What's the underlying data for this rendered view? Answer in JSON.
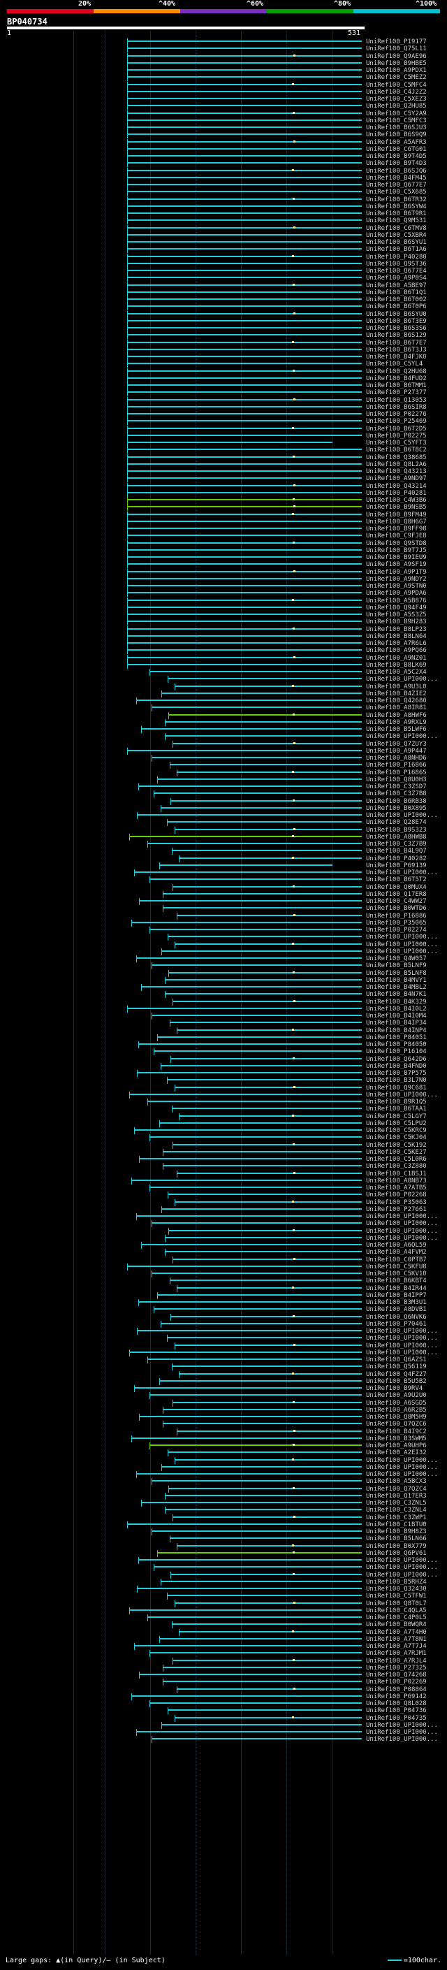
{
  "scale": {
    "colors": [
      "#e3001b",
      "#ff8c00",
      "#7b2fbe",
      "#00a000",
      "#00c0d0"
    ],
    "labels": [
      "20%",
      "^40%",
      "^60%",
      "^80%",
      "^100%"
    ]
  },
  "query": {
    "id": "BP040734",
    "start": "1",
    "end": "531"
  },
  "colors": {
    "normal": "#1bcfdd",
    "highlight": "#5fd000",
    "tick": "#ffffff"
  },
  "hits": [
    "UniRef100_P19177",
    "UniRef100_Q75L11",
    "UniRef100_Q9AE96",
    "UniRef100_B9HBE5",
    "UniRef100_A9PDX1",
    "UniRef100_C5MEZ2",
    "UniRef100_C5MFC4",
    "UniRef100_C4J2Z2",
    "UniRef100_C5XEZ3",
    "UniRef100_Q2HU85",
    "UniRef100_C5Y2A9",
    "UniRef100_C5MFC3",
    "UniRef100_B6SJU3",
    "UniRef100_B6S9Q9",
    "UniRef100_A5AFR3",
    "UniRef100_C6TG01",
    "UniRef100_B9T4D5",
    "UniRef100_B9T4D3",
    "UniRef100_B6SJQ6",
    "UniRef100_B4FM45",
    "UniRef100_Q677E7",
    "UniRef100_C5X685",
    "UniRef100_B6TR32",
    "UniRef100_B6SYW4",
    "UniRef100_B6T9R1",
    "UniRef100_Q9M531",
    "UniRef100_C6TMV8",
    "UniRef100_C5XBR4",
    "UniRef100_B6SYU1",
    "UniRef100_B6T1A6",
    "UniRef100_P40280",
    "UniRef100_Q9ST36",
    "UniRef100_Q677E4",
    "UniRef100_A9P8S4",
    "UniRef100_A5BE97",
    "UniRef100_B6T1Q1",
    "UniRef100_B6T002",
    "UniRef100_B6T0P6",
    "UniRef100_B6SYU0",
    "UniRef100_B6T3E9",
    "UniRef100_B6S3S6",
    "UniRef100_B6S129",
    "UniRef100_B6T7E7",
    "UniRef100_B6T3J3",
    "UniRef100_B4FJK0",
    "UniRef100_C5YL4",
    "UniRef100_Q2HU68",
    "UniRef100_B4FUD2",
    "UniRef100_B6TMM1",
    "UniRef100_P27377",
    "UniRef100_Q13053",
    "UniRef100_B6SIR8",
    "UniRef100_P02276",
    "UniRef100_P25469",
    "UniRef100_B6T2D5",
    "UniRef100_P02275",
    "UniRef100_C5YFT3",
    "UniRef100_B6T8C2",
    "UniRef100_Q38685",
    "UniRef100_Q8L2A6",
    "UniRef100_Q43213",
    "UniRef100_A9ND97",
    "UniRef100_Q43214",
    "UniRef100_P40281",
    "UniRef100_C4W3B6",
    "UniRef100_B9NSB5",
    "UniRef100_B9FM49",
    "UniRef100_Q8H6G7",
    "UniRef100_B9FF98",
    "UniRef100_C9FJE8",
    "UniRef100_Q9STD8",
    "UniRef100_B9T7J5",
    "UniRef100_B9IEU9",
    "UniRef100_A9SF19",
    "UniRef100_A9P1T9",
    "UniRef100_A9NDY2",
    "UniRef100_A9STN0",
    "UniRef100_A9PDA6",
    "UniRef100_A5B876",
    "UniRef100_Q94F49",
    "UniRef100_A5S3Z5",
    "UniRef100_B9H283",
    "UniRef100_B8LP23",
    "UniRef100_B8LN64",
    "UniRef100_A7R6L6",
    "UniRef100_A9PQ66",
    "UniRef100_A9NZ01",
    "UniRef100_B8LK69",
    "UniRef100_A5C2X4",
    "UniRef100_UPI000...",
    "UniRef100_A9U3L0",
    "UniRef100_B4ZIE2",
    "UniRef100_Q42680",
    "UniRef100_A8IR81",
    "UniRef100_A8HWF6",
    "UniRef100_A9RXL9",
    "UniRef100_B5LWF6",
    "UniRef100_UPI000...",
    "UniRef100_Q7ZUY3",
    "UniRef100_A9P447",
    "UniRef100_A8NHD6",
    "UniRef100_P16866",
    "UniRef100_P16865",
    "UniRef100_Q8U0H3",
    "UniRef100_C3ZSD7",
    "UniRef100_C3Z7B8",
    "UniRef100_B6RB38",
    "UniRef100_B0X895",
    "UniRef100_UPI000...",
    "UniRef100_Q28E74",
    "UniRef100_B9S323",
    "UniRef100_A8HWB8",
    "UniRef100_C3Z7B9",
    "UniRef100_B4L9Q7",
    "UniRef100_P40282",
    "UniRef100_P69139",
    "UniRef100_UPI000...",
    "UniRef100_B6T5T2",
    "UniRef100_Q0MUX4",
    "UniRef100_Q17ER8",
    "UniRef100_C4WW27",
    "UniRef100_B0WTD6",
    "UniRef100_P16886",
    "UniRef100_P35065",
    "UniRef100_P02274",
    "UniRef100_UPI000...",
    "UniRef100_UPI000...",
    "UniRef100_UPI000...",
    "UniRef100_Q4W057",
    "UniRef100_B5LNF9",
    "UniRef100_B5LNF8",
    "UniRef100_B4MVY1",
    "UniRef100_B4MBL2",
    "UniRef100_B4N7K1",
    "UniRef100_B4K329",
    "UniRef100_B4I0L2",
    "UniRef100_B4I0M4",
    "UniRef100_B4IP34",
    "UniRef100_B4INP4",
    "UniRef100_P84051",
    "UniRef100_P84050",
    "UniRef100_P16104",
    "UniRef100_Q642D6",
    "UniRef100_B4FND0",
    "UniRef100_B7P575",
    "UniRef100_B3L7N0",
    "UniRef100_Q9C681",
    "UniRef100_UPI000...",
    "UniRef100_B9R1Q5",
    "UniRef100_B6TAA1",
    "UniRef100_C5LGY7",
    "UniRef100_C5LPU2",
    "UniRef100_C5KRC9",
    "UniRef100_C5KJ04",
    "UniRef100_C5K192",
    "UniRef100_C5KE27",
    "UniRef100_C5L0R6",
    "UniRef100_C3Z880",
    "UniRef100_C1BSJ1",
    "UniRef100_A8NB73",
    "UniRef100_A7ATB5",
    "UniRef100_P02268",
    "UniRef100_P35063",
    "UniRef100_P27661",
    "UniRef100_UPI000...",
    "UniRef100_UPI000...",
    "UniRef100_UPI000...",
    "UniRef100_UPI000...",
    "UniRef100_A6QL59",
    "UniRef100_A4FVM2",
    "UniRef100_C0PTB7",
    "UniRef100_C5KFU8",
    "UniRef100_C5KV10",
    "UniRef100_B6KBT4",
    "UniRef100_B4IR44",
    "UniRef100_B4IPP7",
    "UniRef100_B3M3U1",
    "UniRef100_A8DVB1",
    "UniRef100_Q6NVK6",
    "UniRef100_P70461",
    "UniRef100_UPI000...",
    "UniRef100_UPI000...",
    "UniRef100_UPI000...",
    "UniRef100_UPI000...",
    "UniRef100_Q6AZS1",
    "UniRef100_Q56119",
    "UniRef100_Q4FZ27",
    "UniRef100_B5U5B2",
    "UniRef100_B9RV4",
    "UniRef100_A9U2U0",
    "UniRef100_A6SGD5",
    "UniRef100_A6R2B5",
    "UniRef100_Q8M5H9",
    "UniRef100_Q7QZC6",
    "UniRef100_B4I9C2",
    "UniRef100_B3SWM5",
    "UniRef100_A9UHP6",
    "UniRef100_A2EI32",
    "UniRef100_UPI000...",
    "UniRef100_UPI000...",
    "UniRef100_UPI000...",
    "UniRef100_A5BCX3",
    "UniRef100_Q7QZC4",
    "UniRef100_Q17ER3",
    "UniRef100_C3ZNL5",
    "UniRef100_C3ZNL4",
    "UniRef100_C3ZWP1",
    "UniRef100_C1BTU0",
    "UniRef100_B9H8Z3",
    "UniRef100_B5LN66",
    "UniRef100_B0X779",
    "UniRef100_Q6PV61",
    "UniRef100_UPI000...",
    "UniRef100_UPI000...",
    "UniRef100_UPI000...",
    "UniRef100_B5RHZ4",
    "UniRef100_Q32430",
    "UniRef100_C5TFW1",
    "UniRef100_Q8T0L7",
    "UniRef100_C4QLA5",
    "UniRef100_C4P0L5",
    "UniRef100_B0WQR4",
    "UniRef100_A7T4H0",
    "UniRef100_A7T8N1",
    "UniRef100_A7T7J4",
    "UniRef100_A7RJM1",
    "UniRef100_A7RJL4",
    "UniRef100_P27325",
    "UniRef100_Q74268",
    "UniRef100_P02269",
    "UniRef100_P08864",
    "UniRef100_P69142",
    "UniRef100_Q8L028",
    "UniRef100_P04736",
    "UniRef100_P04735",
    "UniRef100_UPI000...",
    "UniRef100_UPI000...",
    "UniRef100_UPI000..."
  ],
  "footer": {
    "legend": "Large gaps: ▲(in Query)/– (in Subject)",
    "scale_note": "=100char."
  }
}
